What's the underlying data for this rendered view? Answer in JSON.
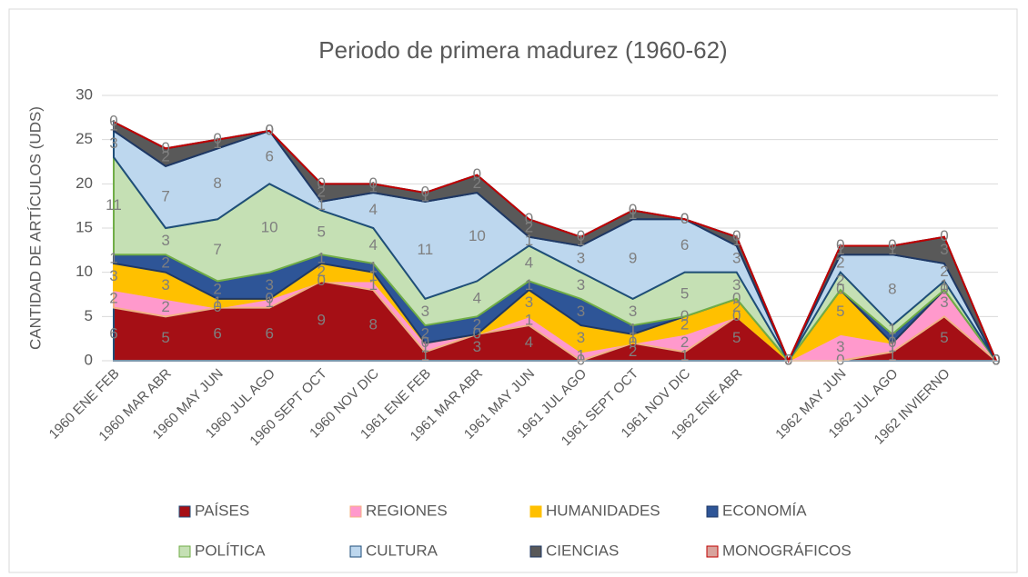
{
  "chart_data": {
    "type": "stacked_area",
    "title": "Periodo de primera madurez (1960-62)",
    "y_label": "CANTIDAD DE ARTÍCULOS (UDS)",
    "categories": [
      "1960 ENE FEB",
      "1960 MAR ABR",
      "1960 MAY JUN",
      "1960 JUL AGO",
      "1960 SEPT OCT",
      "1960 NOV DIC",
      "1961 ENE FEB",
      "1961 MAR ABR",
      "1961 MAY JUN",
      "1961 JUL AGO",
      "1961 SEPT OCT",
      "1961 NOV DIC",
      "1962 ENE ABR",
      null,
      "1962 MAY JUN",
      "1962 JUL AGO",
      "1962 INVIERNO",
      null
    ],
    "series": [
      {
        "name": "PAÍSES",
        "color": "#a50f15",
        "stroke": "#1f4e79",
        "values": [
          6,
          5,
          6,
          6,
          9,
          8,
          1,
          3,
          4,
          0,
          2,
          1,
          5,
          0,
          0,
          1,
          5,
          0
        ]
      },
      {
        "name": "REGIONES",
        "color": "#ff99cc",
        "stroke": "#f4b183",
        "values": [
          2,
          2,
          0,
          1,
          0,
          1,
          1,
          0,
          1,
          1,
          0,
          2,
          0,
          0,
          3,
          1,
          3,
          0
        ]
      },
      {
        "name": "HUMANIDADES",
        "color": "#ffc000",
        "stroke": "#ffc000",
        "values": [
          3,
          3,
          1,
          0,
          2,
          1,
          0,
          0,
          3,
          3,
          1,
          2,
          2,
          0,
          5,
          0,
          0,
          0
        ]
      },
      {
        "name": "ECONOMÍA",
        "color": "#2e5597",
        "stroke": "#1f3864",
        "values": [
          1,
          2,
          2,
          3,
          1,
          1,
          2,
          2,
          1,
          3,
          1,
          0,
          0,
          0,
          0,
          1,
          0,
          0
        ]
      },
      {
        "name": "POLÍTICA",
        "color": "#c5e0b4",
        "stroke": "#70ad47",
        "values": [
          11,
          3,
          7,
          10,
          5,
          4,
          3,
          4,
          4,
          3,
          3,
          5,
          3,
          0,
          2,
          1,
          1,
          0
        ]
      },
      {
        "name": "CULTURA",
        "color": "#bdd7ee",
        "stroke": "#1f4e79",
        "values": [
          3,
          7,
          8,
          6,
          1,
          4,
          11,
          10,
          1,
          3,
          9,
          6,
          3,
          0,
          2,
          8,
          2,
          0
        ]
      },
      {
        "name": "CIENCIAS",
        "color": "#595959",
        "stroke": "#1f3864",
        "values": [
          1,
          2,
          1,
          0,
          2,
          1,
          1,
          2,
          2,
          1,
          1,
          0,
          1,
          0,
          1,
          1,
          3,
          0
        ]
      },
      {
        "name": "MONOGRÁFICOS",
        "color": "#d8a39d",
        "stroke": "#c00000",
        "values": [
          0,
          0,
          0,
          0,
          0,
          0,
          0,
          0,
          0,
          0,
          0,
          0,
          0,
          0,
          0,
          0,
          0,
          0
        ]
      }
    ],
    "ylim": [
      0,
      30
    ],
    "yticks": [
      0,
      5,
      10,
      15,
      20,
      25,
      30
    ],
    "grid": true,
    "legend": "bottom"
  }
}
